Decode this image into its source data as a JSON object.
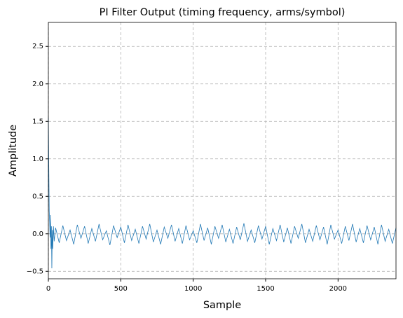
{
  "chart_data": {
    "type": "line",
    "title": "PI Filter Output (timing frequency, arms/symbol)",
    "x_label": "Sample",
    "y_label": "Amplitude",
    "color": "#1f77b4",
    "grid": true,
    "xlim": [
      0,
      2400
    ],
    "ylim": [
      -0.6,
      2.82
    ],
    "xticks": [
      0,
      500,
      1000,
      1500,
      2000
    ],
    "yticks": [
      {
        "value": -0.5,
        "label": "−0.5"
      },
      {
        "value": 0,
        "label": "0.0"
      },
      0.5,
      {
        "value": 1,
        "label": "1.0"
      },
      1.5,
      {
        "value": 2,
        "label": "2.0"
      },
      2.5
    ],
    "x": [
      0,
      3,
      6,
      9,
      12,
      15,
      18,
      21,
      24,
      27,
      30,
      35,
      40,
      50,
      75,
      100,
      125,
      150,
      175,
      200,
      225,
      250,
      275,
      300,
      325,
      350,
      375,
      400,
      425,
      450,
      475,
      500,
      525,
      550,
      575,
      600,
      625,
      650,
      675,
      700,
      725,
      750,
      775,
      800,
      825,
      850,
      875,
      900,
      925,
      950,
      975,
      1000,
      1025,
      1050,
      1075,
      1100,
      1125,
      1150,
      1175,
      1200,
      1225,
      1250,
      1275,
      1300,
      1325,
      1350,
      1375,
      1400,
      1425,
      1450,
      1475,
      1500,
      1525,
      1550,
      1575,
      1600,
      1625,
      1650,
      1675,
      1700,
      1725,
      1750,
      1775,
      1800,
      1825,
      1850,
      1875,
      1900,
      1925,
      1950,
      1975,
      2000,
      2025,
      2050,
      2075,
      2100,
      2125,
      2150,
      2175,
      2200,
      2225,
      2250,
      2275,
      2300,
      2325,
      2350,
      2375,
      2400
    ],
    "values": [
      1.55,
      0.9,
      0.3,
      0.15,
      -0.05,
      0.25,
      -0.2,
      0.1,
      -0.46,
      0.05,
      -0.2,
      0.1,
      -0.1,
      0.08,
      -0.12,
      0.11,
      -0.09,
      0.05,
      -0.14,
      0.12,
      -0.06,
      0.1,
      -0.13,
      0.07,
      -0.1,
      0.13,
      -0.08,
      0.04,
      -0.15,
      0.11,
      -0.05,
      0.09,
      -0.12,
      0.12,
      -0.09,
      0.06,
      -0.13,
      0.1,
      -0.07,
      0.13,
      -0.11,
      0.05,
      -0.14,
      0.09,
      -0.06,
      0.12,
      -0.1,
      0.07,
      -0.13,
      0.11,
      -0.08,
      0.04,
      -0.12,
      0.13,
      -0.09,
      0.08,
      -0.14,
      0.1,
      -0.06,
      0.12,
      -0.11,
      0.06,
      -0.13,
      0.09,
      -0.08,
      0.14,
      -0.1,
      0.05,
      -0.12,
      0.11,
      -0.07,
      0.1,
      -0.14,
      0.07,
      -0.09,
      0.12,
      -0.11,
      0.08,
      -0.13,
      0.1,
      -0.06,
      0.13,
      -0.12,
      0.06,
      -0.1,
      0.11,
      -0.08,
      0.09,
      -0.14,
      0.12,
      -0.07,
      0.05,
      -0.13,
      0.1,
      -0.09,
      0.13,
      -0.11,
      0.07,
      -0.12,
      0.11,
      -0.08,
      0.09,
      -0.14,
      0.12,
      -0.1,
      0.06,
      -0.13,
      0.08
    ]
  }
}
